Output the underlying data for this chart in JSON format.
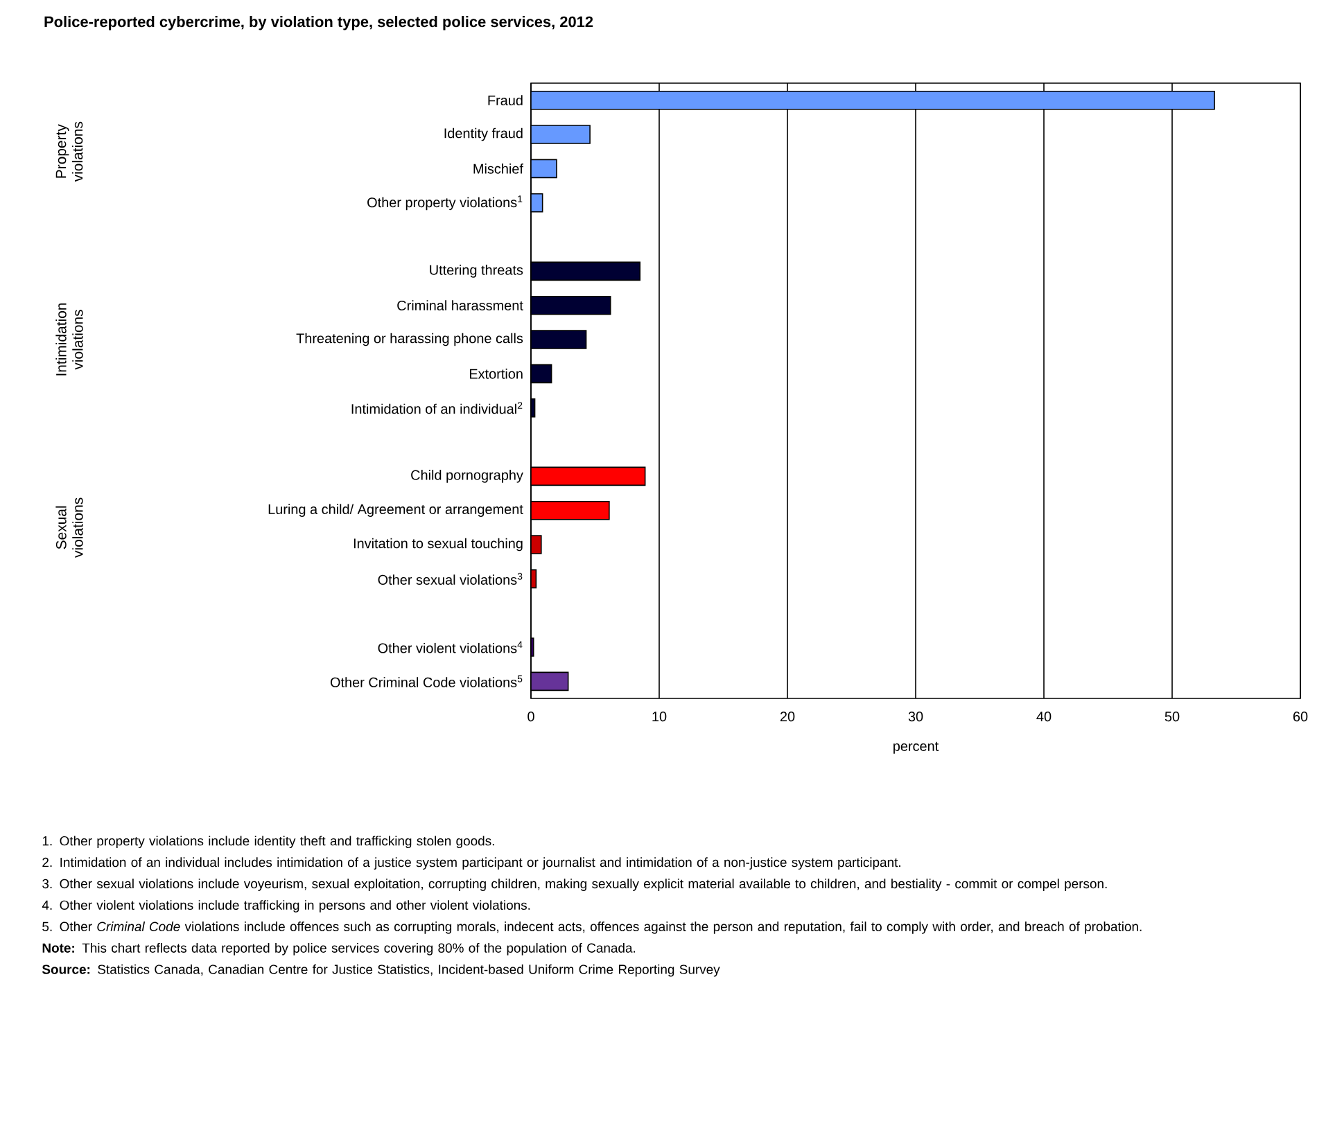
{
  "chart_data": {
    "type": "bar",
    "orientation": "horizontal",
    "title": "Police-reported cybercrime, by violation type, selected police services, 2012",
    "xlabel": "percent",
    "categories": [
      "Fraud",
      "Identity fraud",
      "Mischief",
      "Other property violations$^{1}$",
      null,
      "Uttering threats",
      "Criminal harassment",
      "Threatening or harassing phone calls",
      "Extortion",
      "Intimidation of an individual$^{2}$",
      null,
      "Child pornography",
      "Luring a child/ Agreement or arrangement",
      "Invitation to sexual touching",
      "Other sexual violations$^{3}$",
      null,
      "Other violent violations$^{4}$",
      "Other Criminal Code violations$^{5}$"
    ],
    "values": [
      53.3,
      4.6,
      2.0,
      0.9,
      null,
      8.5,
      6.2,
      4.3,
      1.6,
      0.3,
      null,
      8.9,
      6.1,
      0.8,
      0.4,
      null,
      0.2,
      2.9
    ],
    "colors": [
      "#6699ff",
      "#6699ff",
      "#6699ff",
      "#6699ff",
      null,
      "#000033",
      "#000033",
      "#000033",
      "#000033",
      "#000033",
      null,
      "#ff0000",
      "#ff0000",
      "#cc0000",
      "#cc0000",
      null,
      "#330066",
      "#663399"
    ],
    "xlim": [
      0,
      60
    ],
    "xticks": [
      0,
      10,
      20,
      30,
      40,
      50,
      60
    ],
    "grid": "x",
    "annotations": [
      "Property violations",
      "Intimidation violations",
      "Sexual violations",
      "1. Other property violations include identity theft and trafficking stolen goods.",
      "2. Intimidation of an individual includes intimidation of a justice system participant or journalist and intimidation of a non-justice system participant.",
      "3. Other sexual violations include voyeurism, sexual exploitation, corrupting children, making sexually explicit material available to children, and bestiality - commit or compel person.",
      "4. Other violent violations include trafficking in persons and other violent violations.",
      "5. Other *Criminal Code* violations include offences such as corrupting morals, indecent acts, offences against the person and reputation, fail to comply with order, and breach of probation.",
      "**Note:** This chart reflects data reported by police services covering 80% of the population of Canada.",
      "**Source:** Statistics Canada, Canadian Centre for Justice Statistics, Incident-based Uniform Crime Reporting Survey"
    ]
  }
}
